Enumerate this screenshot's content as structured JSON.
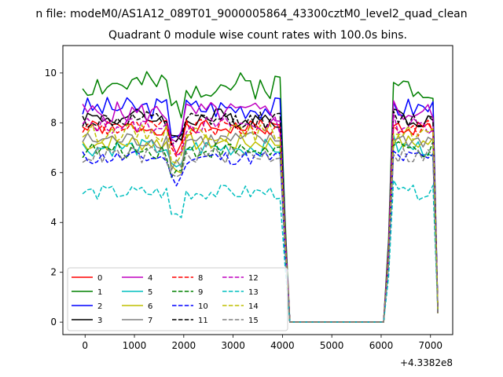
{
  "figure": {
    "suptitle": "n file: modeM0/AS1A12_089T01_9000005864_43300cztM0_level2_quad_clean",
    "title": "Quadrant 0 module wise count rates with 100.0s bins.",
    "offset_label": "+4.3382e8"
  },
  "chart_data": {
    "type": "line",
    "title": "Quadrant 0 module wise count rates with 100.0s bins.",
    "xlabel": "",
    "ylabel": "",
    "x_offset": 433820000,
    "xlim": [
      -450,
      7450
    ],
    "ylim": [
      -0.5,
      11.1
    ],
    "xticks": [
      0,
      1000,
      2000,
      3000,
      4000,
      5000,
      6000,
      7000
    ],
    "yticks": [
      0,
      2,
      4,
      6,
      8,
      10
    ],
    "grid": false,
    "legend": "lower-left",
    "segments": [
      {
        "x_start": -50,
        "x_end": 4000,
        "step": 100
      },
      {
        "x_start": 4050,
        "x_end": 4150,
        "step": 100
      },
      {
        "x_start": 4150,
        "x_end": 6050,
        "step": 100
      },
      {
        "x_start": 6050,
        "x_end": 6250,
        "step": 100
      },
      {
        "x_start": 6250,
        "x_end": 7150,
        "step": 100
      }
    ],
    "series": [
      {
        "name": "0",
        "color": "#ff0000",
        "dash": "solid",
        "level": 7.8,
        "amp": 0.3,
        "seed": 1
      },
      {
        "name": "1",
        "color": "#008000",
        "dash": "solid",
        "level": 9.5,
        "amp": 0.55,
        "seed": 2
      },
      {
        "name": "2",
        "color": "#0000ff",
        "dash": "solid",
        "level": 8.6,
        "amp": 0.45,
        "seed": 3
      },
      {
        "name": "3",
        "color": "#000000",
        "dash": "solid",
        "level": 8.2,
        "amp": 0.4,
        "seed": 4
      },
      {
        "name": "4",
        "color": "#bf00bf",
        "dash": "solid",
        "level": 8.4,
        "amp": 0.45,
        "seed": 5
      },
      {
        "name": "5",
        "color": "#00bfbf",
        "dash": "solid",
        "level": 7.0,
        "amp": 0.35,
        "seed": 6
      },
      {
        "name": "6",
        "color": "#bfbf00",
        "dash": "solid",
        "level": 7.2,
        "amp": 0.35,
        "seed": 7
      },
      {
        "name": "7",
        "color": "#808080",
        "dash": "solid",
        "level": 7.3,
        "amp": 0.35,
        "seed": 8
      },
      {
        "name": "8",
        "color": "#ff0000",
        "dash": "dashed",
        "level": 7.8,
        "amp": 0.35,
        "seed": 9
      },
      {
        "name": "9",
        "color": "#008000",
        "dash": "dashed",
        "level": 6.9,
        "amp": 0.35,
        "seed": 10
      },
      {
        "name": "10",
        "color": "#0000ff",
        "dash": "dashed",
        "level": 6.6,
        "amp": 0.3,
        "seed": 11
      },
      {
        "name": "11",
        "color": "#000000",
        "dash": "dashed",
        "level": 8.1,
        "amp": 0.35,
        "seed": 12
      },
      {
        "name": "12",
        "color": "#bf00bf",
        "dash": "dashed",
        "level": 7.9,
        "amp": 0.35,
        "seed": 13
      },
      {
        "name": "13",
        "color": "#00bfbf",
        "dash": "dashed",
        "level": 5.2,
        "amp": 0.3,
        "seed": 14
      },
      {
        "name": "14",
        "color": "#bfbf00",
        "dash": "dashed",
        "level": 7.6,
        "amp": 0.35,
        "seed": 15
      },
      {
        "name": "15",
        "color": "#808080",
        "dash": "dashed",
        "level": 6.7,
        "amp": 0.35,
        "seed": 16
      }
    ]
  }
}
